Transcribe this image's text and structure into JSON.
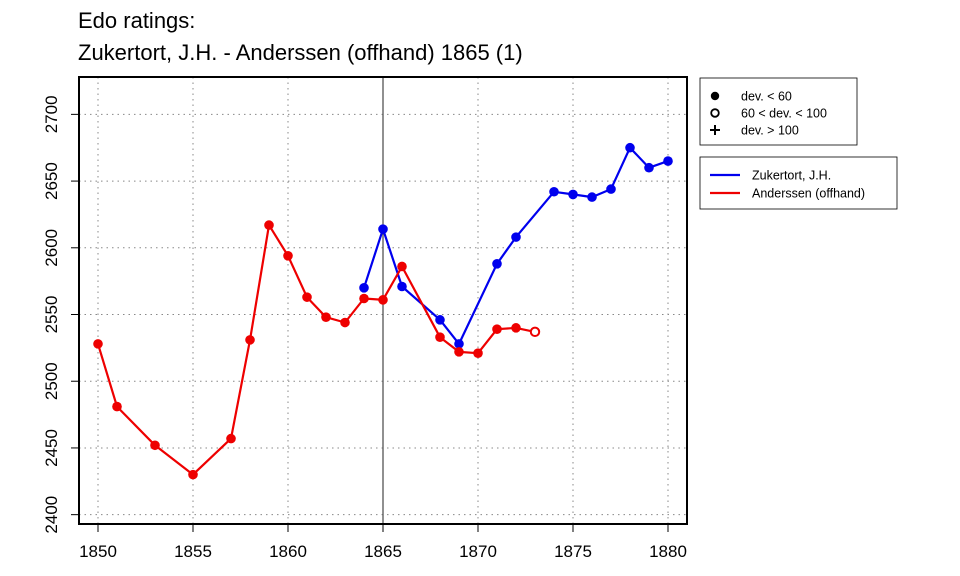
{
  "chart_data": {
    "type": "line",
    "title_line1": "Edo ratings:",
    "title_line2": "Zukertort, J.H. - Anderssen (offhand) 1865 (1)",
    "xlabel": "",
    "ylabel": "",
    "xlim": [
      1849,
      1881
    ],
    "ylim": [
      2393,
      2728
    ],
    "x_ticks": [
      1850,
      1855,
      1860,
      1865,
      1870,
      1875,
      1880
    ],
    "y_ticks": [
      2400,
      2450,
      2500,
      2550,
      2600,
      2650,
      2700
    ],
    "grid": true,
    "marker_line_x": 1865,
    "series": [
      {
        "name": "Zukertort, J.H.",
        "color": "#0000ee",
        "points": [
          {
            "x": 1864,
            "y": 2570,
            "marker": "filled"
          },
          {
            "x": 1865,
            "y": 2614,
            "marker": "filled"
          },
          {
            "x": 1866,
            "y": 2571,
            "marker": "filled"
          },
          {
            "x": 1868,
            "y": 2546,
            "marker": "filled"
          },
          {
            "x": 1869,
            "y": 2528,
            "marker": "filled"
          },
          {
            "x": 1871,
            "y": 2588,
            "marker": "filled"
          },
          {
            "x": 1872,
            "y": 2608,
            "marker": "filled"
          },
          {
            "x": 1874,
            "y": 2642,
            "marker": "filled"
          },
          {
            "x": 1875,
            "y": 2640,
            "marker": "filled"
          },
          {
            "x": 1876,
            "y": 2638,
            "marker": "filled"
          },
          {
            "x": 1877,
            "y": 2644,
            "marker": "filled"
          },
          {
            "x": 1878,
            "y": 2675,
            "marker": "filled"
          },
          {
            "x": 1879,
            "y": 2660,
            "marker": "filled"
          },
          {
            "x": 1880,
            "y": 2665,
            "marker": "filled"
          }
        ]
      },
      {
        "name": "Anderssen (offhand)",
        "color": "#ee0000",
        "points": [
          {
            "x": 1850,
            "y": 2528,
            "marker": "filled"
          },
          {
            "x": 1851,
            "y": 2481,
            "marker": "filled"
          },
          {
            "x": 1853,
            "y": 2452,
            "marker": "filled"
          },
          {
            "x": 1855,
            "y": 2430,
            "marker": "filled"
          },
          {
            "x": 1857,
            "y": 2457,
            "marker": "filled"
          },
          {
            "x": 1858,
            "y": 2531,
            "marker": "filled"
          },
          {
            "x": 1859,
            "y": 2617,
            "marker": "filled"
          },
          {
            "x": 1860,
            "y": 2594,
            "marker": "filled"
          },
          {
            "x": 1861,
            "y": 2563,
            "marker": "filled"
          },
          {
            "x": 1862,
            "y": 2548,
            "marker": "filled"
          },
          {
            "x": 1863,
            "y": 2544,
            "marker": "filled"
          },
          {
            "x": 1864,
            "y": 2562,
            "marker": "filled"
          },
          {
            "x": 1865,
            "y": 2561,
            "marker": "filled"
          },
          {
            "x": 1866,
            "y": 2586,
            "marker": "filled"
          },
          {
            "x": 1868,
            "y": 2533,
            "marker": "filled"
          },
          {
            "x": 1869,
            "y": 2522,
            "marker": "filled"
          },
          {
            "x": 1870,
            "y": 2521,
            "marker": "filled"
          },
          {
            "x": 1871,
            "y": 2539,
            "marker": "filled"
          },
          {
            "x": 1872,
            "y": 2540,
            "marker": "filled"
          },
          {
            "x": 1873,
            "y": 2537,
            "marker": "open"
          }
        ]
      }
    ],
    "deviation_legend": [
      {
        "marker": "filled",
        "label": "dev. < 60"
      },
      {
        "marker": "open",
        "label": "60 < dev. < 100"
      },
      {
        "marker": "plus",
        "label": "dev. > 100"
      }
    ],
    "legend_position": "right"
  }
}
